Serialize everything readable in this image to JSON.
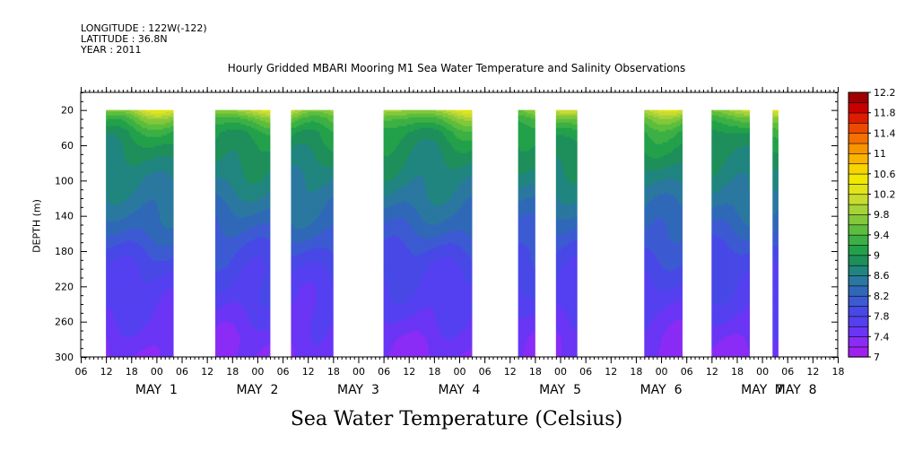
{
  "header": {
    "longitude": "LONGITUDE : 122W(-122)",
    "latitude": "LATITUDE : 36.8N",
    "year": "YEAR : 2011"
  },
  "chart_data": {
    "type": "heatmap",
    "title": "Hourly Gridded MBARI Mooring M1 Sea Water Temperature and Salinity Observations",
    "xlabel": "Sea Water Temperature (Celsius)",
    "ylabel": "DEPTH (m)",
    "x_unit": "hours since MAY 1 06:00",
    "xlim": [
      0,
      180
    ],
    "hour_tick_labels": [
      "06",
      "12",
      "18",
      "00",
      "06",
      "12",
      "18",
      "00",
      "06",
      "12",
      "18",
      "00",
      "06",
      "12",
      "18",
      "00",
      "06",
      "12",
      "18",
      "00",
      "06",
      "12",
      "18",
      "00",
      "06",
      "12",
      "18",
      "00",
      "06",
      "12",
      "18",
      "00"
    ],
    "day_labels": [
      {
        "label": "MAY  1",
        "hour": 18
      },
      {
        "label": "MAY  2",
        "hour": 42
      },
      {
        "label": "MAY  3",
        "hour": 66
      },
      {
        "label": "MAY  4",
        "hour": 90
      },
      {
        "label": "MAY  5",
        "hour": 114
      },
      {
        "label": "MAY  6",
        "hour": 138
      },
      {
        "label": "MAY  7",
        "hour": 162
      },
      {
        "label": "MAY  8",
        "hour": 170
      }
    ],
    "y_ticks": [
      20,
      60,
      100,
      140,
      180,
      220,
      260,
      300
    ],
    "ylim": [
      300,
      0
    ],
    "y_reversed": true,
    "data_depth_range": [
      20,
      300
    ],
    "colorbar": {
      "levels": [
        7,
        7.2,
        7.4,
        7.6,
        7.8,
        8,
        8.2,
        8.4,
        8.6,
        8.8,
        9,
        9.2,
        9.4,
        9.6,
        9.8,
        10,
        10.2,
        10.4,
        10.6,
        10.8,
        11,
        11.2,
        11.4,
        11.6,
        11.8,
        12,
        12.2
      ],
      "labels": [
        "7",
        "7.4",
        "7.8",
        "8.2",
        "8.6",
        "9",
        "9.4",
        "9.8",
        "10.2",
        "10.6",
        "11",
        "11.4",
        "11.8",
        "12.2"
      ],
      "colors": [
        "#a020f0",
        "#8a2cf5",
        "#6a35f5",
        "#5540f0",
        "#4848e6",
        "#3c5ad2",
        "#3068b8",
        "#2a78a0",
        "#20857f",
        "#1e8f5a",
        "#22a04a",
        "#3cb044",
        "#5cbe3c",
        "#82c83a",
        "#a6d23a",
        "#c8dc30",
        "#e0e418",
        "#f0e800",
        "#f8d400",
        "#f8b400",
        "#f89400",
        "#f47000",
        "#ec4a00",
        "#e01c00",
        "#c80000",
        "#a00000"
      ]
    },
    "data_segments": [
      {
        "start": 6,
        "end": 22
      },
      {
        "start": 32,
        "end": 45
      },
      {
        "start": 50,
        "end": 60
      },
      {
        "start": 72,
        "end": 93
      },
      {
        "start": 104,
        "end": 108
      },
      {
        "start": 113,
        "end": 118
      },
      {
        "start": 134,
        "end": 143
      },
      {
        "start": 150,
        "end": 159
      },
      {
        "start": 164.5,
        "end": 165.8
      }
    ],
    "temperature_profile": {
      "depth": [
        20,
        30,
        45,
        60,
        80,
        100,
        120,
        140,
        160,
        180,
        200,
        220,
        240,
        260,
        280,
        300
      ],
      "temperature": [
        10.0,
        9.5,
        9.1,
        8.95,
        8.8,
        8.65,
        8.5,
        8.35,
        8.2,
        8.0,
        7.85,
        7.75,
        7.65,
        7.55,
        7.45,
        7.4
      ]
    }
  }
}
